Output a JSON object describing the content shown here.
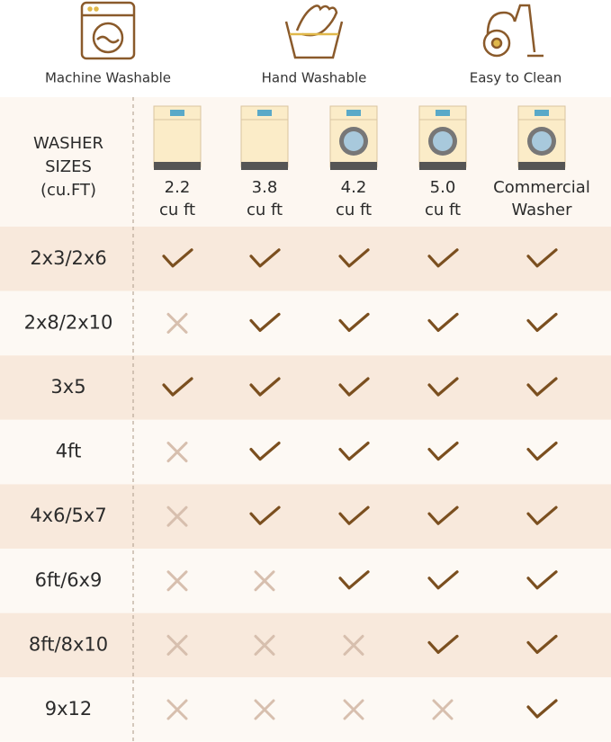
{
  "features": [
    {
      "label": "Machine Washable"
    },
    {
      "label": "Hand Washable"
    },
    {
      "label": "Easy to Clean"
    }
  ],
  "table": {
    "corner": [
      "WASHER",
      "SIZES",
      "(cu.FT)"
    ],
    "columns": [
      [
        "2.2",
        "cu ft"
      ],
      [
        "3.8",
        "cu ft"
      ],
      [
        "4.2",
        "cu ft"
      ],
      [
        "5.0",
        "cu ft"
      ],
      [
        "Commercial",
        "Washer"
      ]
    ],
    "rows": [
      {
        "size": "2x3/2x6",
        "fits": [
          true,
          true,
          true,
          true,
          true
        ]
      },
      {
        "size": "2x8/2x10",
        "fits": [
          false,
          true,
          true,
          true,
          true
        ]
      },
      {
        "size": "3x5",
        "fits": [
          true,
          true,
          true,
          true,
          true
        ]
      },
      {
        "size": "4ft",
        "fits": [
          false,
          true,
          true,
          true,
          true
        ]
      },
      {
        "size": "4x6/5x7",
        "fits": [
          false,
          true,
          true,
          true,
          true
        ]
      },
      {
        "size": "6ft/6x9",
        "fits": [
          false,
          false,
          true,
          true,
          true
        ]
      },
      {
        "size": "8ft/8x10",
        "fits": [
          false,
          false,
          false,
          true,
          true
        ]
      },
      {
        "size": "9x12",
        "fits": [
          false,
          false,
          false,
          false,
          true
        ]
      }
    ]
  }
}
